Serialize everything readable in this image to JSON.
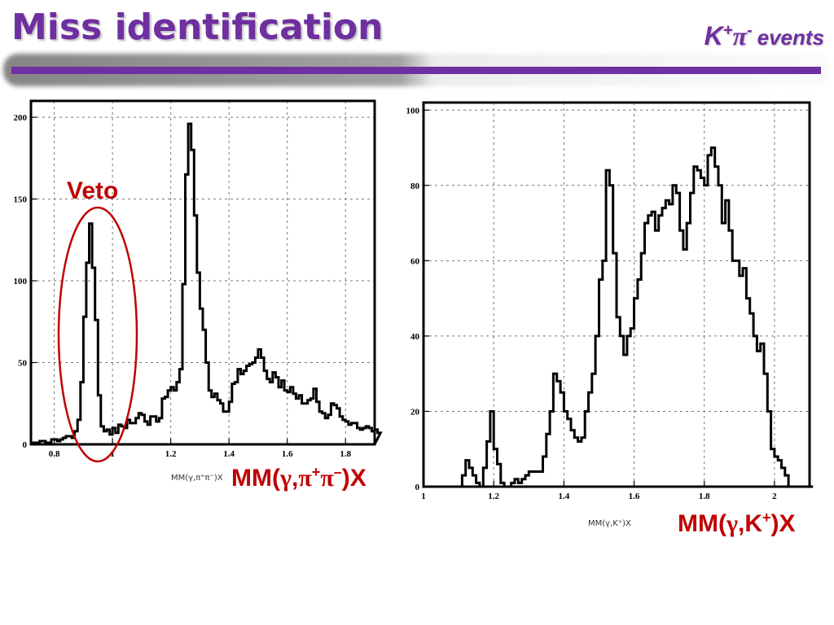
{
  "slide": {
    "title": "Miss identification",
    "subtitle": {
      "k": "K",
      "k_sup": "+",
      "pi": "π",
      "pi_sup": "-",
      "suffix": "events"
    }
  },
  "annotations": {
    "veto_label": "Veto",
    "left_label": {
      "prefix": "MM(",
      "g": "γ",
      "sep": ",",
      "p1": "π",
      "p1_sup": "+",
      "p2": "π",
      "p2_sup": "–",
      "suffix": ")X"
    },
    "right_label": {
      "prefix": "MM(",
      "g": "γ",
      "sep": ",K",
      "k_sup": "+",
      "suffix": ")X"
    }
  },
  "chart_data": [
    {
      "type": "histogram",
      "xlabel": "MM(γ,π⁺π⁻)X",
      "xlim": [
        0.72,
        1.9
      ],
      "ylim": [
        0,
        210
      ],
      "grid": true,
      "xticks": [
        0.8,
        1,
        1.2,
        1.4,
        1.6,
        1.8
      ],
      "xtick_labels": [
        "0.8",
        "1",
        "1.2",
        "1.4",
        "1.6",
        "1.8"
      ],
      "yticks": [
        0,
        50,
        100,
        150,
        200
      ],
      "ytick_labels": [
        "0",
        "50",
        "100",
        "150",
        "200"
      ],
      "bins": {
        "x_start": 0.72,
        "bin_width": 0.01,
        "counts": [
          1,
          1,
          1,
          2,
          2,
          1,
          1,
          3,
          3,
          2,
          3,
          4,
          5,
          5,
          4,
          8,
          15,
          38,
          78,
          111,
          135,
          108,
          76,
          30,
          11,
          8,
          9,
          6,
          10,
          7,
          12,
          11,
          10,
          15,
          13,
          13,
          16,
          19,
          18,
          14,
          12,
          17,
          17,
          14,
          16,
          28,
          29,
          33,
          35,
          33,
          38,
          46,
          98,
          165,
          196,
          180,
          140,
          105,
          83,
          70,
          50,
          33,
          29,
          31,
          27,
          25,
          20,
          20,
          26,
          37,
          38,
          46,
          43,
          45,
          48,
          49,
          50,
          53,
          58,
          53,
          45,
          40,
          38,
          44,
          41,
          35,
          39,
          33,
          32,
          35,
          31,
          28,
          30,
          25,
          25,
          27,
          28,
          34,
          26,
          20,
          19,
          16,
          18,
          25,
          24,
          22,
          17,
          15,
          14,
          12,
          13,
          13,
          10,
          9,
          10,
          11,
          10,
          8,
          9,
          7
        ]
      },
      "annotation": "Veto"
    },
    {
      "type": "histogram",
      "xlabel": "MM(γ,K⁺)X",
      "xlim": [
        1.0,
        2.1
      ],
      "ylim": [
        0,
        102
      ],
      "grid": true,
      "xticks": [
        1,
        1.2,
        1.4,
        1.6,
        1.8,
        2
      ],
      "xtick_labels": [
        "1",
        "1.2",
        "1.4",
        "1.6",
        "1.8",
        "2"
      ],
      "yticks": [
        0,
        20,
        40,
        60,
        80,
        100
      ],
      "ytick_labels": [
        "0",
        "20",
        "40",
        "60",
        "80",
        "100"
      ],
      "bins": {
        "x_start": 1.0,
        "bin_width": 0.01,
        "counts": [
          0,
          0,
          0,
          0,
          0,
          0,
          0,
          0,
          0,
          0,
          0,
          3,
          7,
          5,
          3,
          1,
          0,
          5,
          12,
          20,
          10,
          6,
          1,
          0,
          0,
          1,
          2,
          1,
          2,
          3,
          4,
          4,
          4,
          4,
          8,
          14,
          20,
          30,
          28,
          25,
          20,
          18,
          15,
          13,
          12,
          13,
          20,
          25,
          30,
          40,
          55,
          60,
          84,
          80,
          62,
          45,
          40,
          35,
          40,
          42,
          50,
          55,
          62,
          70,
          72,
          73,
          68,
          72,
          74,
          76,
          75,
          80,
          78,
          68,
          63,
          70,
          78,
          85,
          84,
          82,
          80,
          88,
          90,
          85,
          80,
          70,
          76,
          68,
          60,
          60,
          56,
          58,
          50,
          46,
          40,
          36,
          38,
          30,
          20,
          10,
          8,
          7,
          5,
          3,
          0,
          0,
          0,
          0,
          0,
          0,
          0
        ]
      }
    }
  ]
}
